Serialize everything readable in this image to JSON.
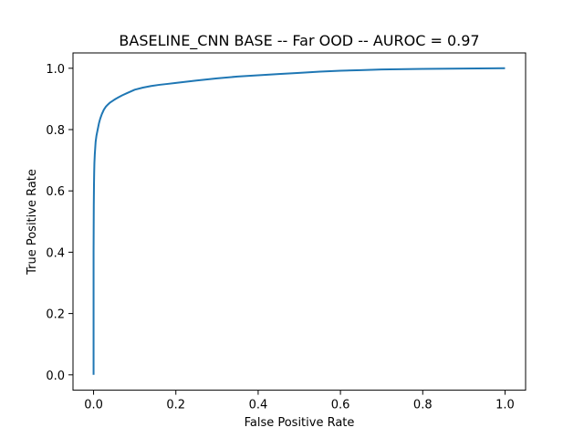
{
  "chart_data": {
    "type": "line",
    "title": "BASELINE_CNN BASE -- Far OOD -- AUROC = 0.97",
    "xlabel": "False Positive Rate",
    "ylabel": "True Positive Rate",
    "xlim": [
      -0.05,
      1.05
    ],
    "ylim": [
      -0.05,
      1.05
    ],
    "x_ticks": [
      0.0,
      0.2,
      0.4,
      0.6,
      0.8,
      1.0
    ],
    "y_ticks": [
      0.0,
      0.2,
      0.4,
      0.6,
      0.8,
      1.0
    ],
    "x_tick_labels": [
      "0.0",
      "0.2",
      "0.4",
      "0.6",
      "0.8",
      "1.0"
    ],
    "y_tick_labels": [
      "0.0",
      "0.2",
      "0.4",
      "0.6",
      "0.8",
      "1.0"
    ],
    "grid": false,
    "series": [
      {
        "color": "#1f77b4",
        "x": [
          0.0,
          0.0,
          0.0005,
          0.001,
          0.0015,
          0.002,
          0.003,
          0.004,
          0.005,
          0.007,
          0.01,
          0.013,
          0.016,
          0.02,
          0.025,
          0.03,
          0.035,
          0.04,
          0.05,
          0.06,
          0.07,
          0.08,
          0.09,
          0.1,
          0.12,
          0.14,
          0.16,
          0.18,
          0.2,
          0.25,
          0.3,
          0.35,
          0.4,
          0.45,
          0.5,
          0.55,
          0.6,
          0.65,
          0.7,
          0.8,
          0.9,
          1.0
        ],
        "y": [
          0.0,
          0.4,
          0.55,
          0.62,
          0.66,
          0.69,
          0.72,
          0.74,
          0.76,
          0.78,
          0.8,
          0.82,
          0.835,
          0.85,
          0.865,
          0.875,
          0.882,
          0.888,
          0.897,
          0.905,
          0.912,
          0.918,
          0.924,
          0.93,
          0.937,
          0.942,
          0.946,
          0.949,
          0.952,
          0.96,
          0.967,
          0.973,
          0.977,
          0.981,
          0.985,
          0.989,
          0.992,
          0.994,
          0.996,
          0.998,
          0.999,
          1.0
        ]
      }
    ]
  }
}
